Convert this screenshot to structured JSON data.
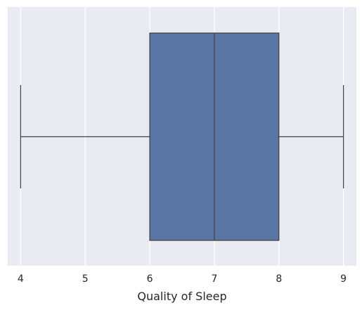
{
  "chart_data": {
    "type": "box",
    "orientation": "horizontal",
    "title": "",
    "xlabel": "Quality of Sleep",
    "ylabel": "",
    "xlim": [
      3.8,
      9.2
    ],
    "xticks": [
      4,
      5,
      6,
      7,
      8,
      9
    ],
    "xtick_labels": [
      "4",
      "5",
      "6",
      "7",
      "8",
      "9"
    ],
    "grid": true,
    "legend": "none",
    "series": [
      {
        "min": 4,
        "q1": 6,
        "median": 7,
        "q3": 8,
        "max": 9,
        "outliers": []
      }
    ],
    "colors": {
      "box_fill": "#5875a4",
      "box_edge": "#3f3f3f",
      "background": "#eaeaf2",
      "grid": "#ffffff",
      "text": "#262626"
    }
  }
}
